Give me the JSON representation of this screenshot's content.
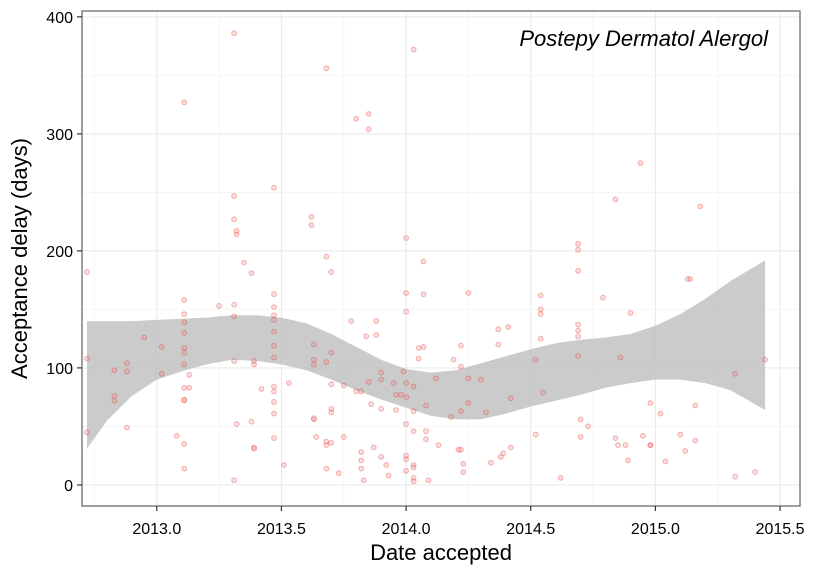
{
  "chart_data": {
    "type": "scatter",
    "title": "Postepy Dermatol Alergol",
    "xlabel": "Date accepted",
    "ylabel": "Acceptance delay (days)",
    "xlim": [
      2012.7,
      2015.58
    ],
    "ylim": [
      -18,
      405
    ],
    "x_ticks": [
      2013.0,
      2013.5,
      2014.0,
      2014.5,
      2015.0,
      2015.5
    ],
    "x_tick_labels": [
      "2013.0",
      "2013.5",
      "2014.0",
      "2014.5",
      "2015.0",
      "2015.5"
    ],
    "y_ticks": [
      0,
      100,
      200,
      300,
      400
    ],
    "y_tick_labels": [
      "0",
      "100",
      "200",
      "300",
      "400"
    ],
    "grid": true,
    "colors": {
      "points": "#f08080",
      "ribbon": "#bdbdbd",
      "grid_major": "#ebebeb",
      "grid_minor": "#f5f5f5",
      "border": "#7f7f7f"
    },
    "points": [
      [
        2012.72,
        182
      ],
      [
        2012.72,
        108
      ],
      [
        2012.72,
        45
      ],
      [
        2012.83,
        98
      ],
      [
        2012.83,
        76
      ],
      [
        2012.83,
        72
      ],
      [
        2012.88,
        104
      ],
      [
        2012.88,
        97
      ],
      [
        2012.88,
        49
      ],
      [
        2012.95,
        126
      ],
      [
        2013.02,
        118
      ],
      [
        2013.02,
        95
      ],
      [
        2013.08,
        42
      ],
      [
        2013.11,
        327
      ],
      [
        2013.11,
        158
      ],
      [
        2013.11,
        146
      ],
      [
        2013.11,
        139
      ],
      [
        2013.11,
        130
      ],
      [
        2013.11,
        117
      ],
      [
        2013.11,
        113
      ],
      [
        2013.11,
        103
      ],
      [
        2013.11,
        83
      ],
      [
        2013.11,
        73
      ],
      [
        2013.11,
        72
      ],
      [
        2013.11,
        35
      ],
      [
        2013.11,
        14
      ],
      [
        2013.13,
        94
      ],
      [
        2013.13,
        83
      ],
      [
        2013.25,
        153
      ],
      [
        2013.31,
        386
      ],
      [
        2013.31,
        247
      ],
      [
        2013.31,
        227
      ],
      [
        2013.32,
        217
      ],
      [
        2013.32,
        214
      ],
      [
        2013.31,
        154
      ],
      [
        2013.31,
        144
      ],
      [
        2013.31,
        106
      ],
      [
        2013.32,
        52
      ],
      [
        2013.31,
        4
      ],
      [
        2013.35,
        190
      ],
      [
        2013.38,
        181
      ],
      [
        2013.38,
        54
      ],
      [
        2013.39,
        106
      ],
      [
        2013.39,
        103
      ],
      [
        2013.39,
        32
      ],
      [
        2013.39,
        31
      ],
      [
        2013.42,
        82
      ],
      [
        2013.47,
        254
      ],
      [
        2013.47,
        163
      ],
      [
        2013.47,
        152
      ],
      [
        2013.47,
        145
      ],
      [
        2013.47,
        141
      ],
      [
        2013.47,
        131
      ],
      [
        2013.47,
        119
      ],
      [
        2013.47,
        109
      ],
      [
        2013.47,
        84
      ],
      [
        2013.47,
        80
      ],
      [
        2013.47,
        71
      ],
      [
        2013.47,
        61
      ],
      [
        2013.47,
        40
      ],
      [
        2013.51,
        17
      ],
      [
        2013.53,
        87
      ],
      [
        2013.62,
        229
      ],
      [
        2013.62,
        222
      ],
      [
        2013.63,
        120
      ],
      [
        2013.63,
        107
      ],
      [
        2013.63,
        103
      ],
      [
        2013.63,
        57
      ],
      [
        2013.63,
        56
      ],
      [
        2013.64,
        41
      ],
      [
        2013.68,
        356
      ],
      [
        2013.68,
        195
      ],
      [
        2013.68,
        105
      ],
      [
        2013.68,
        37
      ],
      [
        2013.68,
        34
      ],
      [
        2013.68,
        14
      ],
      [
        2013.7,
        182
      ],
      [
        2013.7,
        113
      ],
      [
        2013.7,
        86
      ],
      [
        2013.7,
        65
      ],
      [
        2013.7,
        62
      ],
      [
        2013.7,
        36
      ],
      [
        2013.73,
        10
      ],
      [
        2013.75,
        41
      ],
      [
        2013.75,
        85
      ],
      [
        2013.78,
        140
      ],
      [
        2013.8,
        313
      ],
      [
        2013.8,
        80
      ],
      [
        2013.82,
        80
      ],
      [
        2013.82,
        28
      ],
      [
        2013.82,
        21
      ],
      [
        2013.82,
        14
      ],
      [
        2013.83,
        4
      ],
      [
        2013.84,
        127
      ],
      [
        2013.85,
        317
      ],
      [
        2013.85,
        304
      ],
      [
        2013.85,
        88
      ],
      [
        2013.86,
        69
      ],
      [
        2013.87,
        32
      ],
      [
        2013.88,
        140
      ],
      [
        2013.88,
        128
      ],
      [
        2013.9,
        96
      ],
      [
        2013.9,
        90
      ],
      [
        2013.9,
        65
      ],
      [
        2013.9,
        24
      ],
      [
        2013.92,
        17
      ],
      [
        2013.93,
        8
      ],
      [
        2013.95,
        87
      ],
      [
        2013.96,
        77
      ],
      [
        2013.96,
        64
      ],
      [
        2013.98,
        77
      ],
      [
        2013.99,
        97
      ],
      [
        2014.0,
        211
      ],
      [
        2014.0,
        164
      ],
      [
        2014.0,
        148
      ],
      [
        2014.0,
        87
      ],
      [
        2014.0,
        75
      ],
      [
        2014.0,
        52
      ],
      [
        2014.0,
        25
      ],
      [
        2014.0,
        22
      ],
      [
        2014.0,
        12
      ],
      [
        2014.03,
        372
      ],
      [
        2014.03,
        84
      ],
      [
        2014.03,
        63
      ],
      [
        2014.03,
        46
      ],
      [
        2014.03,
        17
      ],
      [
        2014.03,
        15
      ],
      [
        2014.03,
        6
      ],
      [
        2014.03,
        3
      ],
      [
        2014.05,
        117
      ],
      [
        2014.05,
        108
      ],
      [
        2014.07,
        191
      ],
      [
        2014.07,
        163
      ],
      [
        2014.07,
        118
      ],
      [
        2014.08,
        68
      ],
      [
        2014.08,
        46
      ],
      [
        2014.08,
        39
      ],
      [
        2014.09,
        4
      ],
      [
        2014.12,
        91
      ],
      [
        2014.13,
        34
      ],
      [
        2014.18,
        58
      ],
      [
        2014.19,
        107
      ],
      [
        2014.21,
        30
      ],
      [
        2014.22,
        119
      ],
      [
        2014.22,
        101
      ],
      [
        2014.22,
        63
      ],
      [
        2014.22,
        30
      ],
      [
        2014.23,
        18
      ],
      [
        2014.23,
        11
      ],
      [
        2014.25,
        164
      ],
      [
        2014.25,
        91
      ],
      [
        2014.25,
        70
      ],
      [
        2014.3,
        90
      ],
      [
        2014.32,
        62
      ],
      [
        2014.34,
        19
      ],
      [
        2014.37,
        133
      ],
      [
        2014.37,
        120
      ],
      [
        2014.38,
        24
      ],
      [
        2014.39,
        27
      ],
      [
        2014.41,
        135
      ],
      [
        2014.42,
        32
      ],
      [
        2014.42,
        74
      ],
      [
        2014.52,
        43
      ],
      [
        2014.52,
        107
      ],
      [
        2014.54,
        162
      ],
      [
        2014.54,
        150
      ],
      [
        2014.54,
        146
      ],
      [
        2014.54,
        125
      ],
      [
        2014.55,
        79
      ],
      [
        2014.62,
        6
      ],
      [
        2014.69,
        206
      ],
      [
        2014.69,
        201
      ],
      [
        2014.69,
        183
      ],
      [
        2014.69,
        137
      ],
      [
        2014.69,
        132
      ],
      [
        2014.69,
        127
      ],
      [
        2014.69,
        110
      ],
      [
        2014.7,
        56
      ],
      [
        2014.7,
        41
      ],
      [
        2014.73,
        50
      ],
      [
        2014.79,
        160
      ],
      [
        2014.84,
        244
      ],
      [
        2014.84,
        40
      ],
      [
        2014.85,
        34
      ],
      [
        2014.86,
        109
      ],
      [
        2014.88,
        34
      ],
      [
        2014.89,
        21
      ],
      [
        2014.9,
        147
      ],
      [
        2014.94,
        275
      ],
      [
        2014.95,
        42
      ],
      [
        2014.98,
        70
      ],
      [
        2014.98,
        34
      ],
      [
        2014.98,
        34
      ],
      [
        2015.02,
        61
      ],
      [
        2015.04,
        20
      ],
      [
        2015.1,
        43
      ],
      [
        2015.12,
        29
      ],
      [
        2015.13,
        176
      ],
      [
        2015.14,
        176
      ],
      [
        2015.16,
        68
      ],
      [
        2015.16,
        38
      ],
      [
        2015.18,
        238
      ],
      [
        2015.32,
        95
      ],
      [
        2015.32,
        7
      ],
      [
        2015.4,
        11
      ],
      [
        2015.44,
        107
      ]
    ],
    "smooth": {
      "x": [
        2012.72,
        2012.8,
        2012.9,
        2013.0,
        2013.1,
        2013.2,
        2013.3,
        2013.4,
        2013.5,
        2013.6,
        2013.7,
        2013.8,
        2013.9,
        2014.0,
        2014.1,
        2014.2,
        2014.3,
        2014.4,
        2014.5,
        2014.6,
        2014.7,
        2014.8,
        2014.9,
        2015.0,
        2015.1,
        2015.2,
        2015.3,
        2015.44
      ],
      "upper": [
        140,
        140,
        140,
        141,
        142,
        143,
        145,
        145,
        143,
        138,
        129,
        118,
        107,
        99,
        96,
        98,
        104,
        110,
        116,
        121,
        124,
        126,
        129,
        136,
        146,
        159,
        174,
        192
      ],
      "lower": [
        31,
        55,
        76,
        90,
        97,
        103,
        107,
        106,
        103,
        98,
        90,
        81,
        73,
        66,
        59,
        56,
        56,
        61,
        67,
        72,
        77,
        83,
        87,
        90,
        90,
        87,
        81,
        64
      ]
    }
  }
}
